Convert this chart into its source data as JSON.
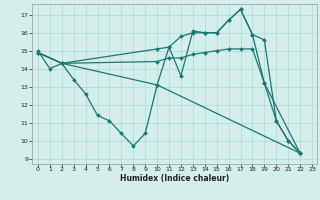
{
  "xlabel": "Humidex (Indice chaleur)",
  "bg_color": "#d4eeec",
  "line_color": "#1a7870",
  "grid_color": "#b0d8d4",
  "xlim": [
    -0.5,
    23.4
  ],
  "ylim": [
    8.7,
    17.6
  ],
  "yticks": [
    9,
    10,
    11,
    12,
    13,
    14,
    15,
    16,
    17
  ],
  "xticks": [
    0,
    1,
    2,
    3,
    4,
    5,
    6,
    7,
    8,
    9,
    10,
    11,
    12,
    13,
    14,
    15,
    16,
    17,
    18,
    19,
    20,
    21,
    22,
    23
  ],
  "line1_x": [
    0,
    1,
    2,
    3,
    4,
    5,
    6,
    7,
    8,
    9,
    10,
    11,
    12,
    13,
    14,
    15,
    16,
    17,
    18,
    19,
    20,
    21,
    22
  ],
  "line1_y": [
    15.0,
    14.0,
    14.3,
    13.4,
    12.6,
    11.4,
    11.1,
    10.4,
    9.7,
    10.4,
    13.1,
    15.2,
    13.6,
    16.1,
    16.0,
    16.0,
    16.7,
    17.3,
    15.9,
    13.2,
    11.1,
    10.0,
    9.3
  ],
  "line2_x": [
    0,
    2,
    10,
    11,
    12,
    13,
    14,
    15,
    16,
    17,
    18,
    19,
    20,
    21,
    22
  ],
  "line2_y": [
    14.9,
    14.3,
    15.1,
    15.2,
    15.8,
    16.0,
    16.0,
    16.0,
    16.7,
    17.3,
    15.9,
    15.6,
    11.1,
    10.0,
    9.3
  ],
  "line3_x": [
    0,
    2,
    10,
    11,
    12,
    13,
    14,
    15,
    16,
    17,
    18,
    19,
    22
  ],
  "line3_y": [
    14.9,
    14.3,
    14.4,
    14.6,
    14.6,
    14.8,
    14.9,
    15.0,
    15.1,
    15.1,
    15.1,
    13.2,
    9.3
  ],
  "line4_x": [
    0,
    2,
    10,
    22
  ],
  "line4_y": [
    14.9,
    14.3,
    13.1,
    9.3
  ]
}
